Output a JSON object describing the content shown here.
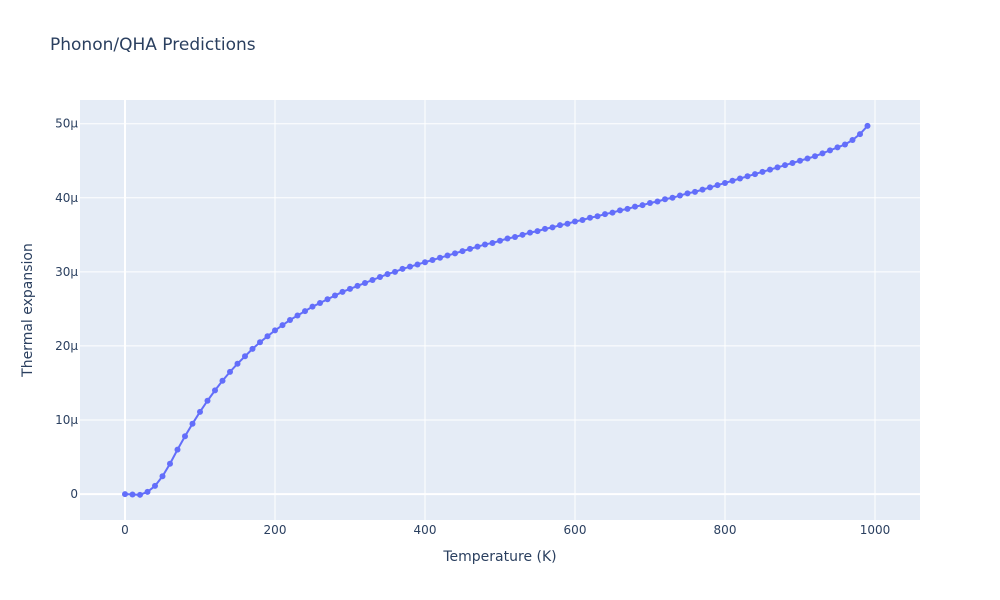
{
  "chart_data": {
    "type": "line",
    "title": "Phonon/QHA Predictions",
    "xlabel": "Temperature (K)",
    "ylabel": "Thermal expansion",
    "xlim": [
      -60,
      1060
    ],
    "ylim": [
      -3.5e-06,
      5.32e-05
    ],
    "grid": true,
    "legend": "none",
    "colors": {
      "plot_bg": "#e5ecf6",
      "paper_bg": "#ffffff",
      "series": "#636efa",
      "text": "#2a3f5f"
    },
    "x_ticks": [
      {
        "value": 0,
        "label": "0"
      },
      {
        "value": 200,
        "label": "200"
      },
      {
        "value": 400,
        "label": "400"
      },
      {
        "value": 600,
        "label": "600"
      },
      {
        "value": 800,
        "label": "800"
      },
      {
        "value": 1000,
        "label": "1000"
      }
    ],
    "y_ticks": [
      {
        "value": 0,
        "label": "0"
      },
      {
        "value": 1e-05,
        "label": "10μ"
      },
      {
        "value": 2e-05,
        "label": "20μ"
      },
      {
        "value": 3e-05,
        "label": "30μ"
      },
      {
        "value": 4e-05,
        "label": "40μ"
      },
      {
        "value": 5e-05,
        "label": "50μ"
      }
    ],
    "series": [
      {
        "x": [
          0,
          10,
          20,
          30,
          40,
          50,
          60,
          70,
          80,
          90,
          100,
          110,
          120,
          130,
          140,
          150,
          160,
          170,
          180,
          190,
          200,
          210,
          220,
          230,
          240,
          250,
          260,
          270,
          280,
          290,
          300,
          310,
          320,
          330,
          340,
          350,
          360,
          370,
          380,
          390,
          400,
          410,
          420,
          430,
          440,
          450,
          460,
          470,
          480,
          490,
          500,
          510,
          520,
          530,
          540,
          550,
          560,
          570,
          580,
          590,
          600,
          610,
          620,
          630,
          640,
          650,
          660,
          670,
          680,
          690,
          700,
          710,
          720,
          730,
          740,
          750,
          760,
          770,
          780,
          790,
          800,
          810,
          820,
          830,
          840,
          850,
          860,
          870,
          880,
          890,
          900,
          910,
          920,
          930,
          940,
          950,
          960,
          970,
          980,
          990
        ],
        "y": [
          0,
          -5e-08,
          -1e-07,
          3e-07,
          1.1e-06,
          2.4e-06,
          4.1e-06,
          6e-06,
          7.8e-06,
          9.5e-06,
          1.11e-05,
          1.26e-05,
          1.4e-05,
          1.53e-05,
          1.65e-05,
          1.76e-05,
          1.86e-05,
          1.96e-05,
          2.05e-05,
          2.13e-05,
          2.21e-05,
          2.28e-05,
          2.35e-05,
          2.41e-05,
          2.47e-05,
          2.53e-05,
          2.58e-05,
          2.63e-05,
          2.68e-05,
          2.73e-05,
          2.77e-05,
          2.81e-05,
          2.85e-05,
          2.89e-05,
          2.93e-05,
          2.97e-05,
          3e-05,
          3.04e-05,
          3.07e-05,
          3.1e-05,
          3.13e-05,
          3.16e-05,
          3.19e-05,
          3.22e-05,
          3.25e-05,
          3.28e-05,
          3.31e-05,
          3.34e-05,
          3.37e-05,
          3.39e-05,
          3.42e-05,
          3.45e-05,
          3.47e-05,
          3.5e-05,
          3.53e-05,
          3.55e-05,
          3.58e-05,
          3.6e-05,
          3.63e-05,
          3.65e-05,
          3.68e-05,
          3.7e-05,
          3.73e-05,
          3.75e-05,
          3.78e-05,
          3.8e-05,
          3.83e-05,
          3.85e-05,
          3.88e-05,
          3.9e-05,
          3.93e-05,
          3.95e-05,
          3.98e-05,
          4e-05,
          4.03e-05,
          4.06e-05,
          4.08e-05,
          4.11e-05,
          4.14e-05,
          4.17e-05,
          4.2e-05,
          4.23e-05,
          4.26e-05,
          4.29e-05,
          4.32e-05,
          4.35e-05,
          4.38e-05,
          4.41e-05,
          4.44e-05,
          4.47e-05,
          4.5e-05,
          4.53e-05,
          4.56e-05,
          4.6e-05,
          4.64e-05,
          4.68e-05,
          4.72e-05,
          4.78e-05,
          4.86e-05,
          4.97e-05
        ]
      }
    ]
  }
}
